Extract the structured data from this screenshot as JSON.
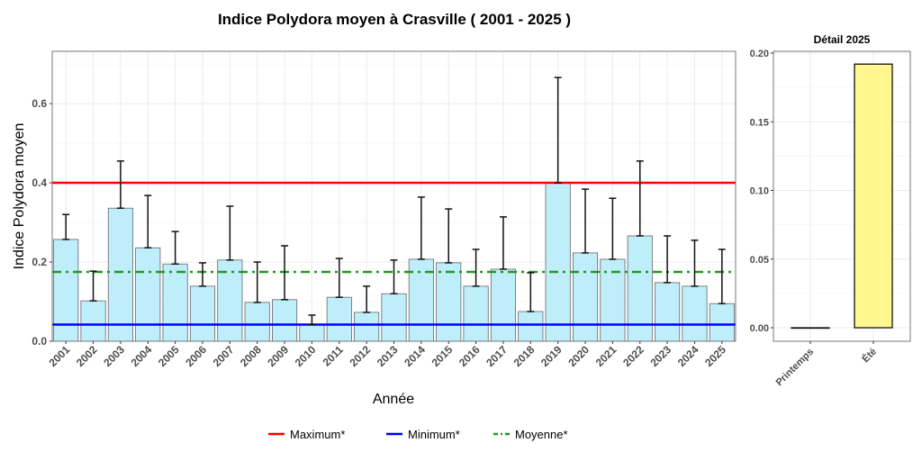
{
  "chart_data": [
    {
      "type": "bar",
      "title": "Indice Polydora moyen à Crasville ( 2001 - 2025 )",
      "xlabel": "Année",
      "ylabel": "Indice Polydora moyen",
      "ylim": [
        0,
        0.732
      ],
      "yticks": [
        "0.0",
        "0.2",
        "0.4",
        "0.6"
      ],
      "ytick_values": [
        0,
        0.2,
        0.4,
        0.6
      ],
      "grid": true,
      "categories": [
        "2001",
        "2002",
        "2003",
        "2004",
        "2005",
        "2006",
        "2007",
        "2008",
        "2009",
        "2010",
        "2011",
        "2012",
        "2013",
        "2014",
        "2015",
        "2016",
        "2017",
        "2018",
        "2019",
        "2020",
        "2021",
        "2022",
        "2023",
        "2024",
        "2025"
      ],
      "values": [
        0.257,
        0.102,
        0.336,
        0.236,
        0.195,
        0.139,
        0.205,
        0.098,
        0.105,
        0.042,
        0.111,
        0.073,
        0.12,
        0.207,
        0.198,
        0.139,
        0.182,
        0.075,
        0.4,
        0.223,
        0.207,
        0.266,
        0.148,
        0.139,
        0.095
      ],
      "error_upper": [
        0.32,
        0.177,
        0.455,
        0.368,
        0.277,
        0.198,
        0.341,
        0.2,
        0.241,
        0.066,
        0.209,
        0.139,
        0.205,
        0.364,
        0.334,
        0.232,
        0.314,
        0.173,
        0.666,
        0.384,
        0.361,
        0.455,
        0.266,
        0.255,
        0.232
      ],
      "bar_color": "#bfeefb",
      "reference_lines": [
        {
          "name": "Maximum*",
          "value": 0.4,
          "color": "#ff0000",
          "style": "solid"
        },
        {
          "name": "Minimum*",
          "value": 0.042,
          "color": "#0000ff",
          "style": "solid"
        },
        {
          "name": "Moyenne*",
          "value": 0.175,
          "color": "#229922",
          "style": "dotdash"
        }
      ],
      "legend_position": "bottom"
    },
    {
      "type": "bar",
      "title": "Détail 2025",
      "categories": [
        "Printemps",
        "Été"
      ],
      "values": [
        0,
        0.192
      ],
      "ylim": [
        -0.01,
        0.2
      ],
      "yticks": [
        "0.00",
        "0.05",
        "0.10",
        "0.15",
        "0.20"
      ],
      "ytick_values": [
        0,
        0.05,
        0.1,
        0.15,
        0.2
      ],
      "bar_color": "#fff68f",
      "grid": true
    }
  ]
}
